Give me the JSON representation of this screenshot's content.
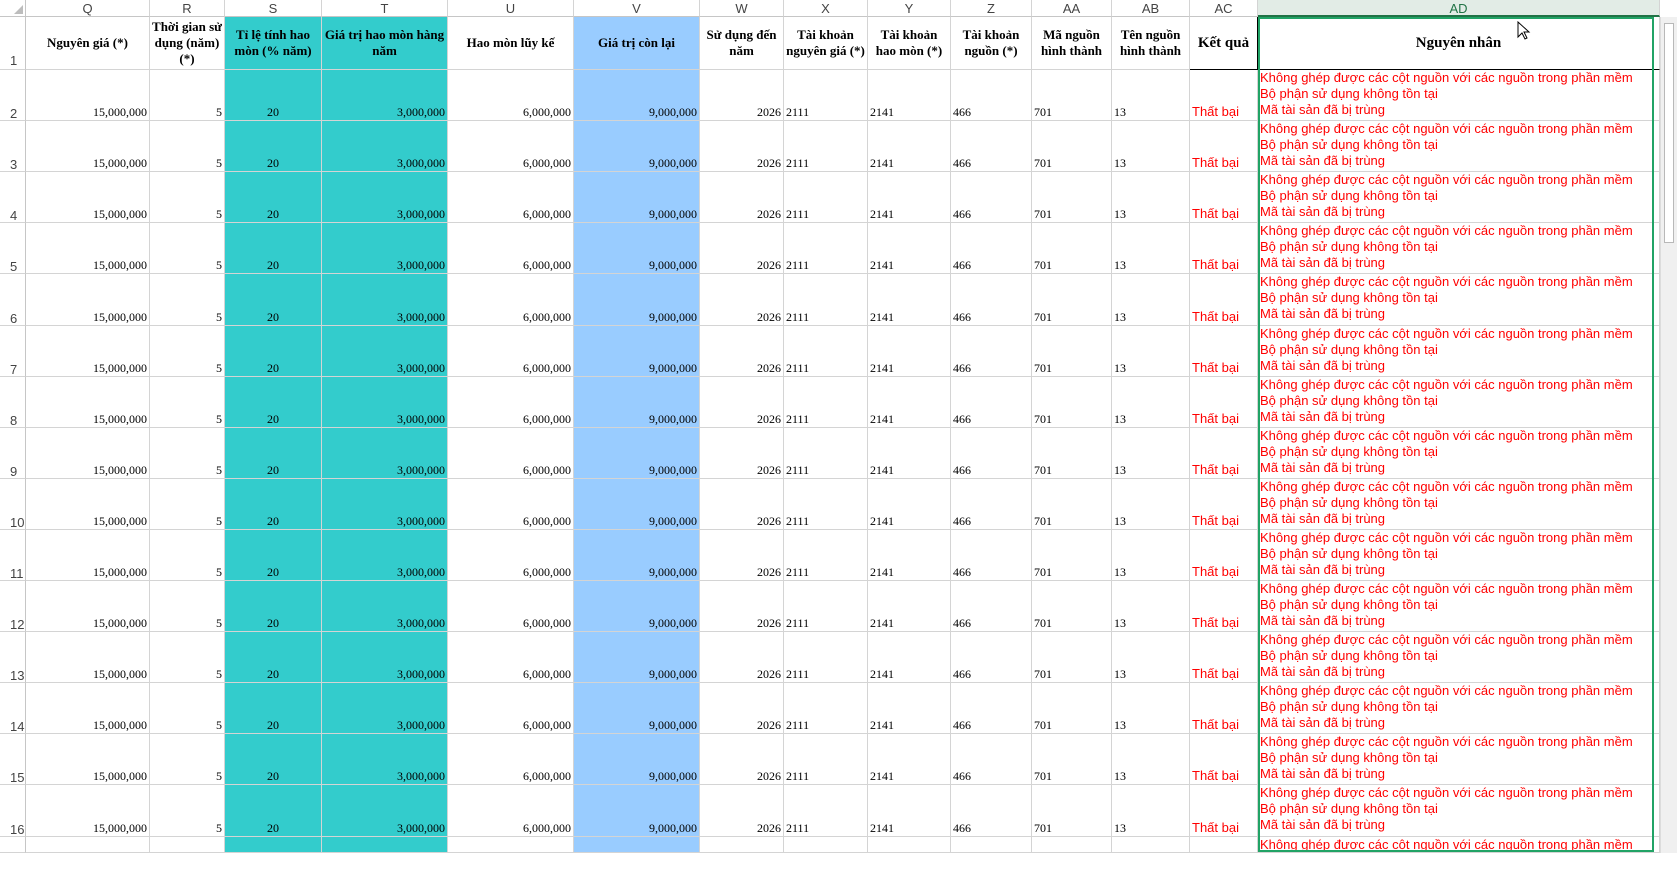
{
  "columns": [
    {
      "letter": "Q",
      "header": "Nguyên giá (*)",
      "fill": ""
    },
    {
      "letter": "R",
      "header": "Thời gian sử dụng (năm) (*)",
      "fill": ""
    },
    {
      "letter": "S",
      "header": "Tỉ lệ tính hao mòn (% năm)",
      "fill": "#33cccc"
    },
    {
      "letter": "T",
      "header": "Giá trị hao mòn hàng năm",
      "fill": "#33cccc"
    },
    {
      "letter": "U",
      "header": "Hao mòn lũy kế",
      "fill": ""
    },
    {
      "letter": "V",
      "header": "Giá trị còn lại",
      "fill": "#99ccff"
    },
    {
      "letter": "W",
      "header": "Sử dụng đến năm",
      "fill": ""
    },
    {
      "letter": "X",
      "header": "Tài khoản nguyên giá (*)",
      "fill": ""
    },
    {
      "letter": "Y",
      "header": "Tài khoản hao mòn (*)",
      "fill": ""
    },
    {
      "letter": "Z",
      "header": "Tài khoản nguồn (*)",
      "fill": ""
    },
    {
      "letter": "AA",
      "header": "Mã nguồn hình thành",
      "fill": ""
    },
    {
      "letter": "AB",
      "header": "Tên nguồn hình thành",
      "fill": ""
    },
    {
      "letter": "AC",
      "header": "Kết quả",
      "fill": ""
    },
    {
      "letter": "AD",
      "header": "Nguyên nhân",
      "fill": ""
    }
  ],
  "active_column": "AD",
  "header_row_number": "1",
  "rows": [
    {
      "num": "2",
      "values": [
        "15,000,000",
        "5",
        "20",
        "3,000,000",
        "6,000,000",
        "9,000,000",
        "2026",
        "2111",
        "2141",
        "466",
        "701",
        "13",
        "Thất bại"
      ],
      "reasons": [
        "Không ghép được các cột nguồn với các nguồn trong phần mềm",
        "Bộ phận sử dụng không tồn tại",
        "Mã tài sản đã bị trùng"
      ]
    },
    {
      "num": "3",
      "values": [
        "15,000,000",
        "5",
        "20",
        "3,000,000",
        "6,000,000",
        "9,000,000",
        "2026",
        "2111",
        "2141",
        "466",
        "701",
        "13",
        "Thất bại"
      ],
      "reasons": [
        "Không ghép được các cột nguồn với các nguồn trong phần mềm",
        "Bộ phận sử dụng không tồn tại",
        "Mã tài sản đã bị trùng"
      ]
    },
    {
      "num": "4",
      "values": [
        "15,000,000",
        "5",
        "20",
        "3,000,000",
        "6,000,000",
        "9,000,000",
        "2026",
        "2111",
        "2141",
        "466",
        "701",
        "13",
        "Thất bại"
      ],
      "reasons": [
        "Không ghép được các cột nguồn với các nguồn trong phần mềm",
        "Bộ phận sử dụng không tồn tại",
        "Mã tài sản đã bị trùng"
      ]
    },
    {
      "num": "5",
      "values": [
        "15,000,000",
        "5",
        "20",
        "3,000,000",
        "6,000,000",
        "9,000,000",
        "2026",
        "2111",
        "2141",
        "466",
        "701",
        "13",
        "Thất bại"
      ],
      "reasons": [
        "Không ghép được các cột nguồn với các nguồn trong phần mềm",
        "Bộ phận sử dụng không tồn tại",
        "Mã tài sản đã bị trùng"
      ]
    },
    {
      "num": "6",
      "values": [
        "15,000,000",
        "5",
        "20",
        "3,000,000",
        "6,000,000",
        "9,000,000",
        "2026",
        "2111",
        "2141",
        "466",
        "701",
        "13",
        "Thất bại"
      ],
      "reasons": [
        "Không ghép được các cột nguồn với các nguồn trong phần mềm",
        "Bộ phận sử dụng không tồn tại",
        "Mã tài sản đã bị trùng"
      ]
    },
    {
      "num": "7",
      "values": [
        "15,000,000",
        "5",
        "20",
        "3,000,000",
        "6,000,000",
        "9,000,000",
        "2026",
        "2111",
        "2141",
        "466",
        "701",
        "13",
        "Thất bại"
      ],
      "reasons": [
        "Không ghép được các cột nguồn với các nguồn trong phần mềm",
        "Bộ phận sử dụng không tồn tại",
        "Mã tài sản đã bị trùng"
      ]
    },
    {
      "num": "8",
      "values": [
        "15,000,000",
        "5",
        "20",
        "3,000,000",
        "6,000,000",
        "9,000,000",
        "2026",
        "2111",
        "2141",
        "466",
        "701",
        "13",
        "Thất bại"
      ],
      "reasons": [
        "Không ghép được các cột nguồn với các nguồn trong phần mềm",
        "Bộ phận sử dụng không tồn tại",
        "Mã tài sản đã bị trùng"
      ]
    },
    {
      "num": "9",
      "values": [
        "15,000,000",
        "5",
        "20",
        "3,000,000",
        "6,000,000",
        "9,000,000",
        "2026",
        "2111",
        "2141",
        "466",
        "701",
        "13",
        "Thất bại"
      ],
      "reasons": [
        "Không ghép được các cột nguồn với các nguồn trong phần mềm",
        "Bộ phận sử dụng không tồn tại",
        "Mã tài sản đã bị trùng"
      ]
    },
    {
      "num": "10",
      "values": [
        "15,000,000",
        "5",
        "20",
        "3,000,000",
        "6,000,000",
        "9,000,000",
        "2026",
        "2111",
        "2141",
        "466",
        "701",
        "13",
        "Thất bại"
      ],
      "reasons": [
        "Không ghép được các cột nguồn với các nguồn trong phần mềm",
        "Bộ phận sử dụng không tồn tại",
        "Mã tài sản đã bị trùng"
      ]
    },
    {
      "num": "11",
      "values": [
        "15,000,000",
        "5",
        "20",
        "3,000,000",
        "6,000,000",
        "9,000,000",
        "2026",
        "2111",
        "2141",
        "466",
        "701",
        "13",
        "Thất bại"
      ],
      "reasons": [
        "Không ghép được các cột nguồn với các nguồn trong phần mềm",
        "Bộ phận sử dụng không tồn tại",
        "Mã tài sản đã bị trùng"
      ]
    },
    {
      "num": "12",
      "values": [
        "15,000,000",
        "5",
        "20",
        "3,000,000",
        "6,000,000",
        "9,000,000",
        "2026",
        "2111",
        "2141",
        "466",
        "701",
        "13",
        "Thất bại"
      ],
      "reasons": [
        "Không ghép được các cột nguồn với các nguồn trong phần mềm",
        "Bộ phận sử dụng không tồn tại",
        "Mã tài sản đã bị trùng"
      ]
    },
    {
      "num": "13",
      "values": [
        "15,000,000",
        "5",
        "20",
        "3,000,000",
        "6,000,000",
        "9,000,000",
        "2026",
        "2111",
        "2141",
        "466",
        "701",
        "13",
        "Thất bại"
      ],
      "reasons": [
        "Không ghép được các cột nguồn với các nguồn trong phần mềm",
        "Bộ phận sử dụng không tồn tại",
        "Mã tài sản đã bị trùng"
      ]
    },
    {
      "num": "14",
      "values": [
        "15,000,000",
        "5",
        "20",
        "3,000,000",
        "6,000,000",
        "9,000,000",
        "2026",
        "2111",
        "2141",
        "466",
        "701",
        "13",
        "Thất bại"
      ],
      "reasons": [
        "Không ghép được các cột nguồn với các nguồn trong phần mềm",
        "Bộ phận sử dụng không tồn tại",
        "Mã tài sản đã bị trùng"
      ]
    },
    {
      "num": "15",
      "values": [
        "15,000,000",
        "5",
        "20",
        "3,000,000",
        "6,000,000",
        "9,000,000",
        "2026",
        "2111",
        "2141",
        "466",
        "701",
        "13",
        "Thất bại"
      ],
      "reasons": [
        "Không ghép được các cột nguồn với các nguồn trong phần mềm",
        "Bộ phận sử dụng không tồn tại",
        "Mã tài sản đã bị trùng"
      ]
    },
    {
      "num": "16",
      "values": [
        "15,000,000",
        "5",
        "20",
        "3,000,000",
        "6,000,000",
        "9,000,000",
        "2026",
        "2111",
        "2141",
        "466",
        "701",
        "13",
        "Thất bại"
      ],
      "reasons": [
        "Không ghép được các cột nguồn với các nguồn trong phần mềm",
        "Bộ phận sử dụng không tồn tại",
        "Mã tài sản đã bị trùng"
      ]
    }
  ],
  "partial_row_reason": "Không ghép được các cột nguồn với các nguồn trong phần mềm",
  "colors": {
    "selection": "#21a366",
    "error_text": "#ff0000",
    "teal_fill": "#33cccc",
    "blue_fill": "#99ccff"
  }
}
